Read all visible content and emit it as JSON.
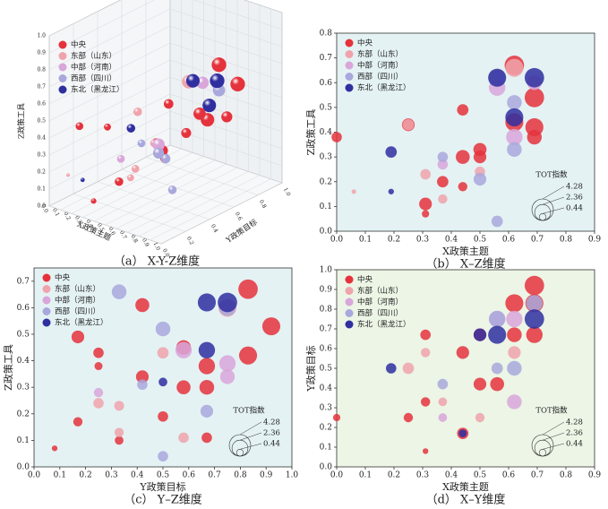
{
  "chart_data": [
    {
      "type": "scatter3d",
      "caption": "（a） X-Y-Z维度",
      "xlabel": "X政策主题",
      "ylabel": "Y政策目标",
      "zlabel": "Z政策工具",
      "xlim": [
        0,
        1
      ],
      "ylim": [
        0,
        1
      ],
      "zlim": [
        0,
        1
      ],
      "xticks": [
        {
          "value": 0,
          "label": "0.0"
        },
        0.1,
        0.2,
        0.3,
        0.4,
        0.5,
        0.6,
        0.7,
        0.8,
        0.9,
        {
          "value": 1,
          "label": "1.0"
        }
      ],
      "yticks": [
        {
          "value": 0,
          "label": "0.0"
        },
        0.2,
        0.4,
        0.6,
        0.8,
        {
          "value": 1,
          "label": "1.0"
        }
      ],
      "zticks": [
        {
          "value": 0,
          "label": "0.0"
        },
        0.1,
        0.2,
        0.3,
        0.4,
        0.5,
        0.6,
        0.7,
        0.8,
        0.9,
        {
          "value": 1,
          "label": "1.0"
        }
      ],
      "series": [
        {
          "name": "中央",
          "color": "#e5323c",
          "x": [
            0.0,
            0.25,
            0.31,
            0.44,
            0.44,
            0.5,
            0.5,
            0.62,
            0.69,
            0.69,
            0.62,
            0.69,
            0.31,
            0.56
          ],
          "y": [
            0.25,
            0.25,
            0.67,
            0.58,
            0.17,
            0.42,
            0.67,
            0.83,
            0.92,
            0.67,
            0.67,
            0.83,
            0.08,
            0.42
          ],
          "z": [
            0.38,
            0.43,
            0.11,
            0.49,
            0.18,
            0.33,
            0.3,
            0.67,
            0.54,
            0.42,
            0.44,
            0.38,
            0.07,
            0.3
          ],
          "sizes": [
            1,
            0.8,
            1.5,
            1.5,
            1.2,
            1.5,
            1.6,
            3.5,
            3.5,
            3,
            2.5,
            2,
            0.5,
            1.8
          ]
        },
        {
          "name": "东部（山东）",
          "color": "#f0a3ab",
          "x": [
            0.25,
            0.31,
            0.37,
            0.5,
            0.62,
            0.06
          ],
          "y": [
            0.5,
            0.58,
            0.33,
            0.25,
            0.58,
            0.1
          ],
          "z": [
            0.43,
            0.23,
            0.13,
            0.24,
            0.66,
            0.16
          ],
          "sizes": [
            1.2,
            1,
            0.8,
            1,
            3,
            0.2
          ]
        },
        {
          "name": "中部（河南）",
          "color": "#d9a6da",
          "x": [
            0.37,
            0.56,
            0.62,
            0.69
          ],
          "y": [
            0.25,
            0.75,
            0.33,
            0.75
          ],
          "z": [
            0.27,
            0.58,
            0.38,
            0.6
          ],
          "sizes": [
            1,
            2.5,
            2.5,
            2
          ]
        },
        {
          "name": "西部（四川）",
          "color": "#a9a8dc",
          "x": [
            0.37,
            0.5,
            0.56,
            0.62,
            0.62
          ],
          "y": [
            0.42,
            0.5,
            0.5,
            0.33,
            0.83
          ],
          "z": [
            0.3,
            0.21,
            0.04,
            0.33,
            0.52
          ],
          "sizes": [
            1,
            1.5,
            1.2,
            2,
            2.5
          ]
        },
        {
          "name": "东北（黑龙江）",
          "color": "#2f2fa0",
          "x": [
            0.19,
            0.56,
            0.62,
            0.69,
            0.19
          ],
          "y": [
            0.5,
            0.67,
            0.75,
            0.75,
            0.1
          ],
          "z": [
            0.32,
            0.62,
            0.46,
            0.62,
            0.16
          ],
          "sizes": [
            1.2,
            3,
            3,
            3.5,
            0.3
          ]
        }
      ]
    },
    {
      "type": "bubble",
      "caption": "（b） X–Z维度",
      "xlabel": "X政策主题",
      "ylabel": "Z政策工具",
      "background": "#e4f2f4",
      "xlim": [
        0,
        0.9
      ],
      "ylim": [
        0,
        0.8
      ],
      "xticks": [
        {
          "value": 0,
          "label": "0.0"
        },
        0.1,
        0.2,
        0.3,
        0.4,
        0.5,
        0.6,
        0.7,
        0.8,
        0.9
      ],
      "yticks": [
        {
          "value": 0,
          "label": "0.0"
        },
        0.1,
        0.2,
        0.3,
        0.4,
        0.5,
        0.6,
        0.7,
        0.8
      ],
      "size_legend": {
        "title": "TOT指数",
        "values": [
          4.28,
          2.36,
          0.44
        ]
      },
      "series": [
        {
          "name": "中央",
          "color": "#e5323c",
          "x": [
            0.0,
            0.25,
            0.31,
            0.37,
            0.44,
            0.44,
            0.5,
            0.5,
            0.69,
            0.69,
            0.62,
            0.62,
            0.69,
            0.44,
            0.31
          ],
          "values": [
            0.38,
            0.43,
            0.11,
            0.2,
            0.49,
            0.3,
            0.33,
            0.3,
            0.54,
            0.42,
            0.67,
            0.44,
            0.38,
            0.18,
            0.07
          ],
          "sizes": [
            1,
            1.5,
            1.5,
            1.2,
            1.2,
            1.8,
            1.6,
            1.5,
            3.5,
            3,
            3.5,
            3,
            2,
            0.8,
            0.5
          ]
        },
        {
          "name": "东部（山东）",
          "color": "#f0a3ab",
          "x": [
            0.25,
            0.31,
            0.37,
            0.5,
            0.62,
            0.06
          ],
          "values": [
            0.43,
            0.23,
            0.13,
            0.24,
            0.66,
            0.16
          ],
          "sizes": [
            1.2,
            1,
            0.8,
            1,
            3,
            0.2
          ]
        },
        {
          "name": "中部（河南）",
          "color": "#d9a6da",
          "x": [
            0.37,
            0.56,
            0.62,
            0.69
          ],
          "values": [
            0.27,
            0.58,
            0.38,
            0.6
          ],
          "sizes": [
            1,
            2.5,
            2.5,
            2
          ]
        },
        {
          "name": "西部（四川）",
          "color": "#a9a8dc",
          "x": [
            0.37,
            0.5,
            0.56,
            0.62,
            0.62,
            0.56
          ],
          "values": [
            0.3,
            0.21,
            0.04,
            0.33,
            0.52,
            0.62
          ],
          "sizes": [
            1,
            1.5,
            1.2,
            2,
            2,
            2.5
          ]
        },
        {
          "name": "东北（黑龙江）",
          "color": "#2f2fa0",
          "x": [
            0.19,
            0.56,
            0.62,
            0.69,
            0.19
          ],
          "values": [
            0.32,
            0.62,
            0.46,
            0.62,
            0.16
          ],
          "sizes": [
            1.2,
            3,
            3,
            3.5,
            0.3
          ]
        }
      ]
    },
    {
      "type": "bubble",
      "caption": "（c） Y–Z维度",
      "xlabel": "Y政策目标",
      "ylabel": "Z政策工具",
      "background": "#e4f2f4",
      "xlim": [
        0,
        1
      ],
      "ylim": [
        0,
        0.75
      ],
      "xticks": [
        {
          "value": 0,
          "label": "0.0"
        },
        0.1,
        0.2,
        0.3,
        0.4,
        0.5,
        0.6,
        0.7,
        0.8,
        0.9,
        {
          "value": 1,
          "label": "1.0"
        }
      ],
      "yticks": [
        {
          "value": 0,
          "label": "0.0"
        },
        0.1,
        0.2,
        0.3,
        0.4,
        0.5,
        0.6,
        0.7
      ],
      "size_legend": {
        "title": "TOT指数",
        "values": [
          4.28,
          2.36,
          0.44
        ]
      },
      "series": [
        {
          "name": "中央",
          "color": "#e5323c",
          "x": [
            0.17,
            0.17,
            0.25,
            0.25,
            0.33,
            0.42,
            0.42,
            0.5,
            0.58,
            0.58,
            0.67,
            0.67,
            0.67,
            0.83,
            0.83,
            0.92,
            0.08
          ],
          "values": [
            0.49,
            0.17,
            0.43,
            0.38,
            0.1,
            0.61,
            0.34,
            0.19,
            0.45,
            0.3,
            0.38,
            0.3,
            0.11,
            0.67,
            0.42,
            0.53,
            0.07
          ],
          "sizes": [
            1.5,
            0.8,
            1,
            0.6,
            0.7,
            1.8,
            1.5,
            1,
            2,
            1.8,
            2.5,
            2,
            1,
            3.5,
            3,
            3,
            0.3
          ]
        },
        {
          "name": "东部（山东）",
          "color": "#f0a3ab",
          "x": [
            0.25,
            0.33,
            0.33,
            0.5,
            0.58,
            0.75
          ],
          "values": [
            0.24,
            0.23,
            0.13,
            0.43,
            0.11,
            0.6
          ],
          "sizes": [
            1,
            0.9,
            0.8,
            1.2,
            1,
            3
          ]
        },
        {
          "name": "中部（河南）",
          "color": "#d9a6da",
          "x": [
            0.25,
            0.58,
            0.75,
            0.75
          ],
          "values": [
            0.28,
            0.44,
            0.39,
            0.34
          ],
          "sizes": [
            0.8,
            2.5,
            2.5,
            2
          ]
        },
        {
          "name": "西部（四川）",
          "color": "#a9a8dc",
          "x": [
            0.33,
            0.42,
            0.5,
            0.5,
            0.67,
            0.75
          ],
          "values": [
            0.66,
            0.31,
            0.52,
            0.04,
            0.21,
            0.6
          ],
          "sizes": [
            2,
            1,
            2,
            1,
            1.5,
            2.5
          ]
        },
        {
          "name": "东北（黑龙江）",
          "color": "#2f2fa0",
          "x": [
            0.5,
            0.67,
            0.67,
            0.75
          ],
          "values": [
            0.32,
            0.62,
            0.44,
            0.62
          ],
          "sizes": [
            0.7,
            3,
            2.5,
            3.5
          ]
        }
      ]
    },
    {
      "type": "bubble",
      "caption": "（d） X–Y维度",
      "xlabel": "X政策主题",
      "ylabel": "Y政策目标",
      "background": "#ecf5e6",
      "xlim": [
        0,
        0.9
      ],
      "ylim": [
        0,
        1
      ],
      "xticks": [
        {
          "value": 0,
          "label": "0.0"
        },
        0.1,
        0.2,
        0.3,
        0.4,
        0.5,
        0.6,
        0.7,
        0.8,
        0.9
      ],
      "yticks": [
        {
          "value": 0,
          "label": "0.0"
        },
        0.1,
        0.2,
        0.3,
        0.4,
        0.5,
        0.6,
        0.7,
        0.8,
        0.9,
        {
          "value": 1,
          "label": "1.0"
        }
      ],
      "size_legend": {
        "title": "TOT指数",
        "values": [
          4.28,
          2.36,
          0.44
        ]
      },
      "series": [
        {
          "name": "中央",
          "color": "#e5323c",
          "x": [
            0.0,
            0.25,
            0.31,
            0.31,
            0.31,
            0.44,
            0.44,
            0.5,
            0.56,
            0.5,
            0.62,
            0.69,
            0.69,
            0.69,
            0.62
          ],
          "values": [
            0.25,
            0.25,
            0.67,
            0.33,
            0.08,
            0.58,
            0.17,
            0.42,
            0.42,
            0.67,
            0.83,
            0.92,
            0.83,
            0.67,
            0.67
          ],
          "sizes": [
            0.5,
            0.8,
            1,
            0.8,
            0.3,
            1.5,
            1.2,
            1.5,
            1.8,
            1.5,
            3,
            3.5,
            3,
            2.5,
            2
          ]
        },
        {
          "name": "东部（山东）",
          "color": "#f0a3ab",
          "x": [
            0.25,
            0.31,
            0.37,
            0.5,
            0.62
          ],
          "values": [
            0.5,
            0.58,
            0.33,
            0.25,
            0.58
          ],
          "sizes": [
            1.2,
            0.8,
            0.7,
            0.8,
            1.5
          ]
        },
        {
          "name": "中部（河南）",
          "color": "#d9a6da",
          "x": [
            0.37,
            0.56,
            0.62,
            0.62
          ],
          "values": [
            0.25,
            0.75,
            0.75,
            0.33
          ],
          "sizes": [
            0.7,
            2.5,
            2.5,
            2
          ]
        },
        {
          "name": "西部（四川）",
          "color": "#a9a8dc",
          "x": [
            0.37,
            0.56,
            0.62,
            0.69,
            0.56
          ],
          "values": [
            0.42,
            0.5,
            0.5,
            0.83,
            0.75
          ],
          "sizes": [
            1,
            1.2,
            2,
            2.5,
            2.5
          ]
        },
        {
          "name": "东北（黑龙江）",
          "color": "#2f2fa0",
          "x": [
            0.19,
            0.5,
            0.56,
            0.69,
            0.44
          ],
          "values": [
            0.5,
            0.67,
            0.67,
            0.75,
            0.17
          ],
          "sizes": [
            1,
            1.5,
            3,
            3.5,
            0.6
          ]
        }
      ]
    }
  ]
}
